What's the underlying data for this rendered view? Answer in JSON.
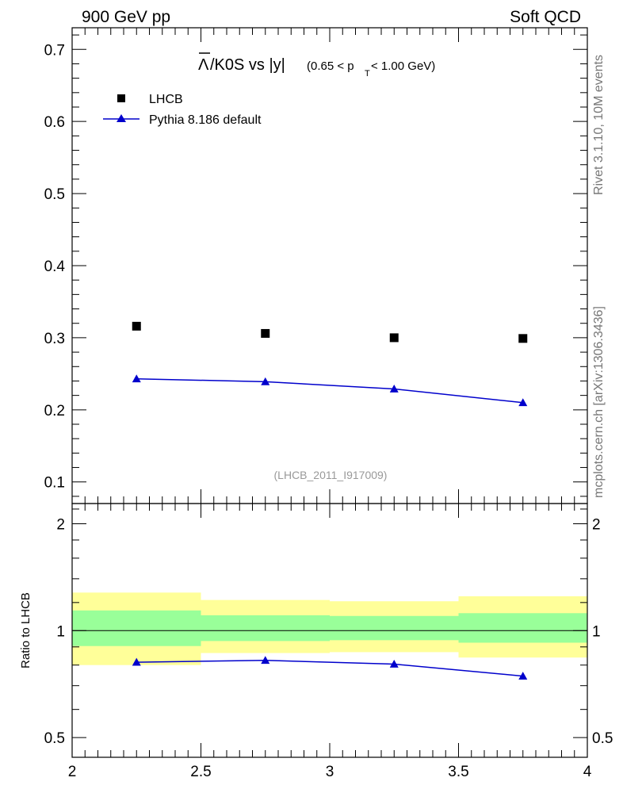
{
  "header": {
    "left": "900 GeV pp",
    "right": "Soft QCD"
  },
  "side_labels": {
    "rivet": "Rivet 3.1.10,  10M events",
    "mcplots": "mcplots.cern.ch [arXiv:1306.3436]"
  },
  "title": {
    "lambda": "Λ",
    "main": "/K0S vs |y|",
    "cut_open": "(0.65 < p",
    "cut_sub": "T",
    "cut_close": " < 1.00 GeV)"
  },
  "legend": {
    "data_label": "LHCB",
    "mc_label": "Pythia 8.186 default"
  },
  "analysis_id": "(LHCB_2011_I917009)",
  "colors": {
    "mc": "#0000cc",
    "band_outer": "#ffff99",
    "band_inner": "#99ff99",
    "data": "#000000"
  },
  "chart_data": [
    {
      "type": "scatter",
      "name": "main",
      "xlim": [
        2.0,
        4.0
      ],
      "ylim": [
        0.07,
        0.73
      ],
      "yticks": [
        0.1,
        0.2,
        0.3,
        0.4,
        0.5,
        0.6,
        0.7
      ],
      "ytick_labels": [
        "0.1",
        "0.2",
        "0.3",
        "0.4",
        "0.5",
        "0.6",
        "0.7"
      ],
      "series": [
        {
          "name": "LHCB",
          "marker": "square",
          "x": [
            2.25,
            2.75,
            3.25,
            3.75
          ],
          "y": [
            0.316,
            0.306,
            0.3,
            0.299
          ]
        },
        {
          "name": "Pythia 8.186 default",
          "marker": "triangle",
          "line": true,
          "x": [
            2.25,
            2.75,
            3.25,
            3.75
          ],
          "y": [
            0.243,
            0.239,
            0.229,
            0.21
          ]
        }
      ]
    },
    {
      "type": "line",
      "name": "ratio",
      "ylabel": "Ratio to LHCB",
      "xlim": [
        2.0,
        4.0
      ],
      "ylim": [
        0.44,
        2.28
      ],
      "yscale": "log",
      "yticks": [
        0.5,
        1,
        2
      ],
      "ytick_labels": [
        "0.5",
        "1",
        "2"
      ],
      "xticks": [
        2.0,
        2.5,
        3.0,
        3.5,
        4.0
      ],
      "xtick_labels": [
        "2",
        "2.5",
        "3",
        "3.5",
        "4"
      ],
      "reference": 1.0,
      "bins": [
        [
          2.0,
          2.5
        ],
        [
          2.5,
          3.0
        ],
        [
          3.0,
          3.5
        ],
        [
          3.5,
          4.0
        ]
      ],
      "band_inner": [
        [
          0.905,
          1.14
        ],
        [
          0.935,
          1.105
        ],
        [
          0.94,
          1.1
        ],
        [
          0.925,
          1.12
        ]
      ],
      "band_outer": [
        [
          0.8,
          1.28
        ],
        [
          0.865,
          1.22
        ],
        [
          0.87,
          1.21
        ],
        [
          0.84,
          1.25
        ]
      ],
      "series": [
        {
          "name": "Pythia 8.186 default",
          "marker": "triangle",
          "x": [
            2.25,
            2.75,
            3.25,
            3.75
          ],
          "y": [
            0.815,
            0.825,
            0.805,
            0.745
          ]
        }
      ]
    }
  ]
}
